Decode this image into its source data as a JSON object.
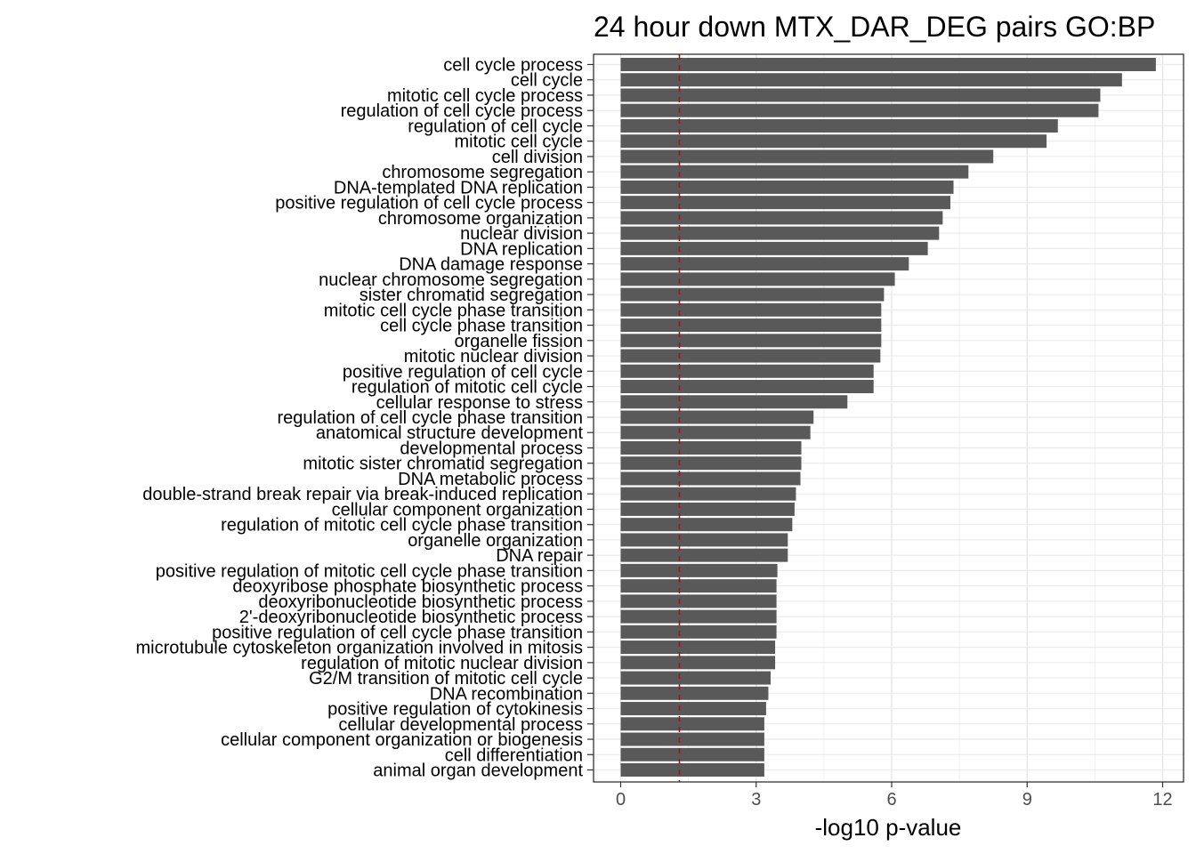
{
  "chart_data": {
    "type": "bar",
    "orientation": "horizontal",
    "title": "24 hour down MTX_DAR_DEG pairs GO:BP",
    "xlabel": "-log10 p-value",
    "ylabel": "",
    "xlim": [
      0,
      12.4
    ],
    "xticks": [
      0,
      3,
      6,
      9,
      12
    ],
    "xtick_labels": [
      "0",
      "3",
      "6",
      "9",
      "12"
    ],
    "grid": true,
    "bar_color": "#595959",
    "threshold_line": {
      "value": 1.3,
      "color": "#cc0000",
      "style": "dashed"
    },
    "categories": [
      "cell cycle process",
      "cell cycle",
      "mitotic cell cycle process",
      "regulation of cell cycle process",
      "regulation of cell cycle",
      "mitotic cell cycle",
      "cell division",
      "chromosome segregation",
      "DNA-templated DNA replication",
      "positive regulation of cell cycle process",
      "chromosome organization",
      "nuclear division",
      "DNA replication",
      "DNA damage response",
      "nuclear chromosome segregation",
      "sister chromatid segregation",
      "mitotic cell cycle phase transition",
      "cell cycle phase transition",
      "organelle fission",
      "mitotic nuclear division",
      "positive regulation of cell cycle",
      "regulation of mitotic cell cycle",
      "cellular response to stress",
      "regulation of cell cycle phase transition",
      "anatomical structure development",
      "developmental process",
      "mitotic sister chromatid segregation",
      "DNA metabolic process",
      "double-strand break repair via break-induced replication",
      "cellular component organization",
      "regulation of mitotic cell cycle phase transition",
      "organelle organization",
      "DNA repair",
      "positive regulation of mitotic cell cycle phase transition",
      "deoxyribose phosphate biosynthetic process",
      "deoxyribonucleotide biosynthetic process",
      "2'-deoxyribonucleotide biosynthetic process",
      "positive regulation of cell cycle phase transition",
      "microtubule cytoskeleton organization involved in mitosis",
      "regulation of mitotic nuclear division",
      "G2/M transition of mitotic cell cycle",
      "DNA recombination",
      "positive regulation of cytokinesis",
      "cellular developmental process",
      "cellular component organization or biogenesis",
      "cell differentiation",
      "animal organ development"
    ],
    "values": [
      11.85,
      11.1,
      10.62,
      10.58,
      9.68,
      9.43,
      8.25,
      7.7,
      7.37,
      7.3,
      7.13,
      7.05,
      6.8,
      6.38,
      6.07,
      5.83,
      5.77,
      5.77,
      5.77,
      5.75,
      5.6,
      5.6,
      5.02,
      4.27,
      4.2,
      4.0,
      4.0,
      3.98,
      3.88,
      3.85,
      3.8,
      3.7,
      3.7,
      3.47,
      3.45,
      3.45,
      3.45,
      3.45,
      3.42,
      3.42,
      3.32,
      3.27,
      3.22,
      3.18,
      3.18,
      3.18,
      3.18
    ]
  }
}
